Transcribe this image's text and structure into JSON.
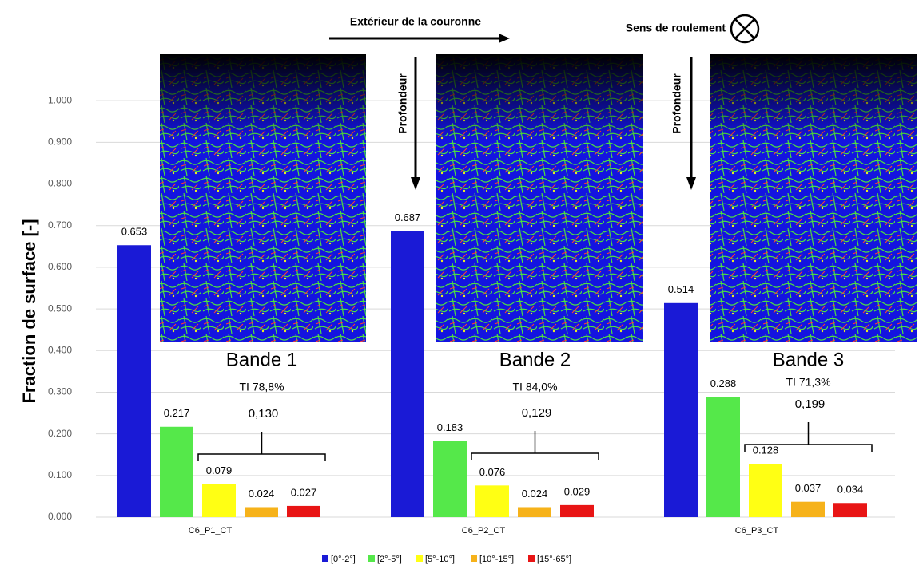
{
  "chart_data": {
    "type": "bar",
    "y_label": "Fraction de surface [-]",
    "categories": [
      "C6_P1_CT",
      "C6_P2_CT",
      "C6_P3_CT"
    ],
    "series": [
      {
        "name": "[0°-2°]",
        "color": "#1a1ad6",
        "values": [
          0.653,
          0.687,
          0.514
        ]
      },
      {
        "name": "[2°-5°]",
        "color": "#55e84a",
        "values": [
          0.217,
          0.183,
          0.288
        ]
      },
      {
        "name": "[5°-10°]",
        "color": "#ffff14",
        "values": [
          0.079,
          0.076,
          0.128
        ]
      },
      {
        "name": "[10°-15°]",
        "color": "#f6b21a",
        "values": [
          0.024,
          0.024,
          0.037
        ]
      },
      {
        "name": "[15°-65°]",
        "color": "#e81515",
        "values": [
          0.027,
          0.029,
          0.034
        ]
      }
    ],
    "ylim": [
      0,
      1.1
    ],
    "yticks": [
      {
        "value": 0,
        "label": "0.000"
      },
      {
        "value": 0.1,
        "label": "0.100"
      },
      {
        "value": 0.2,
        "label": "0.200"
      },
      {
        "value": 0.3,
        "label": "0.300"
      },
      {
        "value": 0.4,
        "label": "0.400"
      },
      {
        "value": 0.5,
        "label": "0.500"
      },
      {
        "value": 0.6,
        "label": "0.600"
      },
      {
        "value": 0.7,
        "label": "0.700"
      },
      {
        "value": 0.8,
        "label": "0.800"
      },
      {
        "value": 0.9,
        "label": "0.900"
      },
      {
        "value": 1,
        "label": "1.000"
      }
    ],
    "grid": true,
    "legend": "bottom",
    "group_annotations": [
      {
        "band": "Bande 1",
        "ti": "TI 78,8%",
        "sum": "0,130"
      },
      {
        "band": "Bande 2",
        "ti": "TI 84,0%",
        "sum": "0,129"
      },
      {
        "band": "Bande 3",
        "ti": "TI 71,3%",
        "sum": "0,199"
      }
    ],
    "direction_label": "Extérieur de la couronne",
    "rolling_label": "Sens de roulement",
    "depth_label": "Profondeur"
  }
}
